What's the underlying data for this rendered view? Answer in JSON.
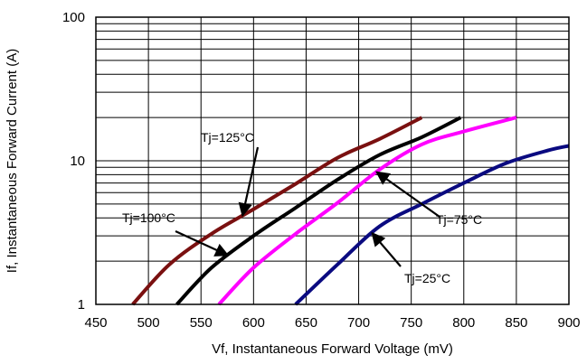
{
  "chart_data": {
    "type": "line",
    "xlabel": "Vf, Instantaneous Forward  Voltage (mV)",
    "ylabel": "If, Instantaneous  Forward  Current (A)",
    "xlim": [
      450,
      900
    ],
    "ylim": [
      1,
      100
    ],
    "y_scale": "log",
    "grid": true,
    "x_ticks": [
      "450",
      "500",
      "550",
      "600",
      "650",
      "700",
      "750",
      "800",
      "850",
      "900"
    ],
    "y_ticks": [
      "1",
      "10",
      "100"
    ],
    "series": [
      {
        "name": "Tj=125°C",
        "color": "#7a1010",
        "x": [
          485,
          520,
          560,
          600,
          640,
          680,
          720,
          760
        ],
        "y": [
          1,
          1.9,
          3.1,
          4.6,
          6.9,
          10.5,
          14.2,
          20
        ]
      },
      {
        "name": "Tj=100°C",
        "color": "#000000",
        "x": [
          527,
          560,
          600,
          640,
          680,
          720,
          760,
          797
        ],
        "y": [
          1,
          1.8,
          3.0,
          4.7,
          7.4,
          11.0,
          14.6,
          20
        ]
      },
      {
        "name": "Tj=75°C",
        "color": "#ff00ff",
        "x": [
          567,
          600,
          640,
          680,
          720,
          760,
          800,
          850
        ],
        "y": [
          1,
          1.8,
          3.1,
          5.1,
          8.7,
          13.0,
          16.0,
          20
        ]
      },
      {
        "name": "Tj=25°C",
        "color": "#0a0a80",
        "x": [
          640,
          680,
          720,
          760,
          800,
          840,
          880,
          900
        ],
        "y": [
          1,
          1.9,
          3.5,
          5.0,
          7.0,
          9.6,
          11.8,
          12.7
        ]
      }
    ],
    "annotations": [
      {
        "text": "Tj=125°C",
        "series": 0
      },
      {
        "text": "Tj=100°C",
        "series": 1
      },
      {
        "text": "Tj=75°C",
        "series": 2
      },
      {
        "text": "Tj=25°C",
        "series": 3
      }
    ]
  }
}
